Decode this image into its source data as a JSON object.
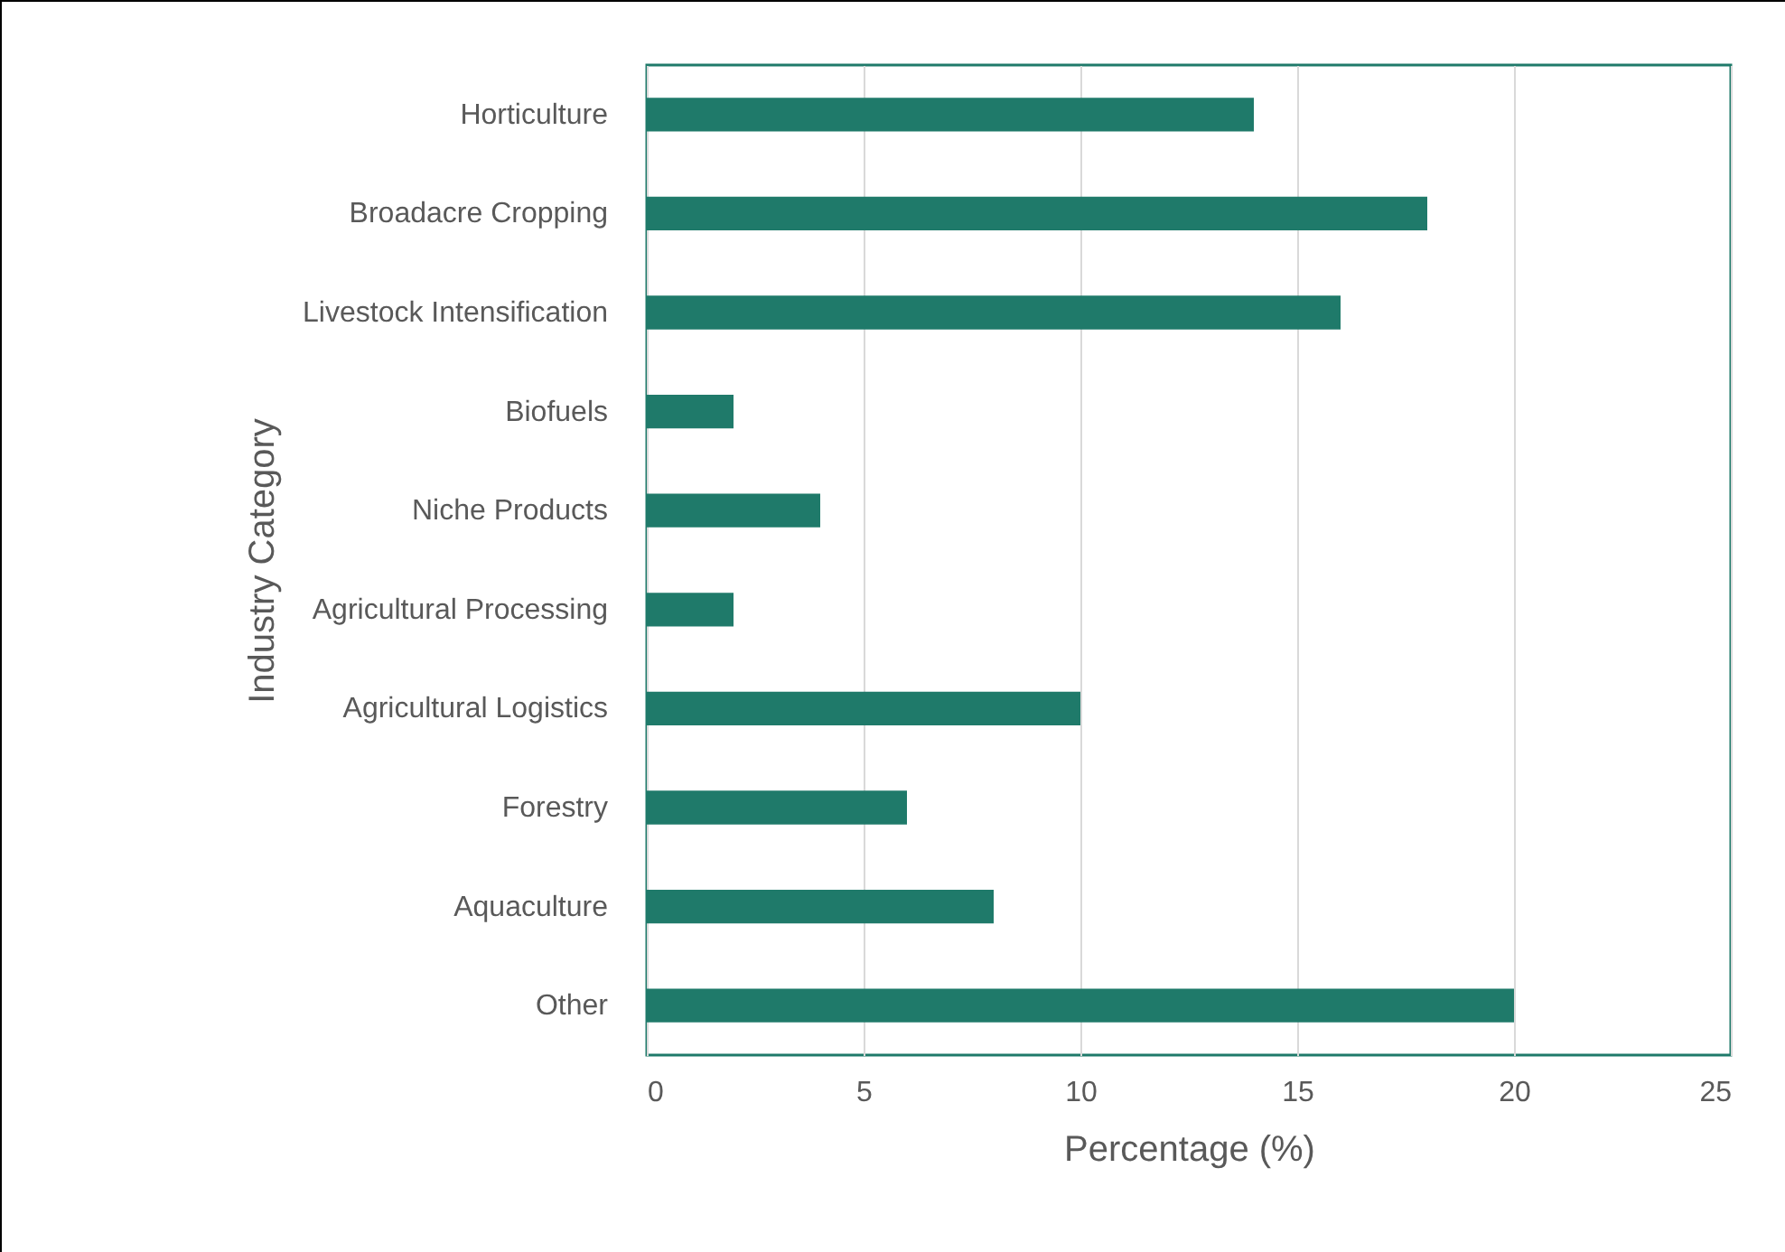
{
  "chart_data": {
    "type": "bar",
    "orientation": "horizontal",
    "xlabel": "Percentage (%)",
    "ylabel": "Industry Category",
    "categories": [
      "Horticulture",
      "Broadacre Cropping",
      "Livestock Intensification",
      "Biofuels",
      "Niche Products",
      "Agricultural Processing",
      "Agricultural Logistics",
      "Forestry",
      "Aquaculture",
      "Other"
    ],
    "values": [
      14,
      18,
      16,
      2,
      4,
      2,
      10,
      6,
      8,
      20
    ],
    "color": "#1f7a6a",
    "xlim": [
      0,
      25
    ],
    "xticks": [
      0,
      5,
      10,
      15,
      20,
      25
    ],
    "grid": "x"
  }
}
